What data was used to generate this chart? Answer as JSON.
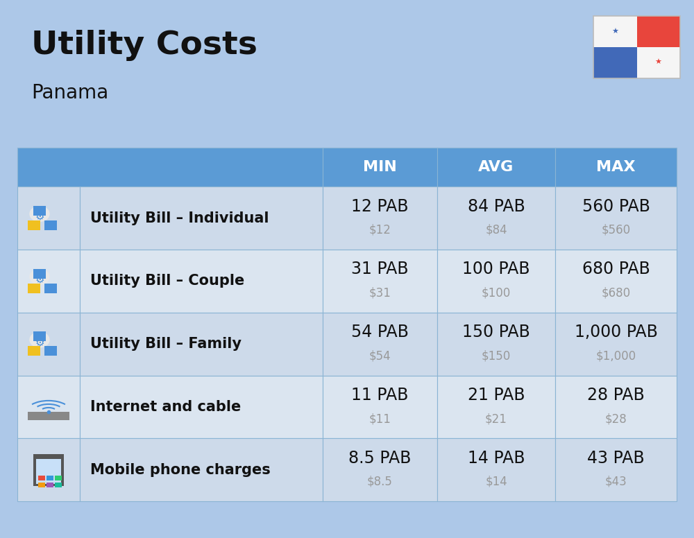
{
  "title": "Utility Costs",
  "subtitle": "Panama",
  "bg_color": "#adc8e8",
  "header_bg_color": "#5b9bd5",
  "header_text_color": "#ffffff",
  "row_bg_color_odd": "#cddaea",
  "row_bg_color_even": "#dbe5f0",
  "cell_border_color": "#8ab4d4",
  "header_labels": [
    "MIN",
    "AVG",
    "MAX"
  ],
  "rows": [
    {
      "label": "Utility Bill – Individual",
      "min_pab": "12 PAB",
      "min_usd": "$12",
      "avg_pab": "84 PAB",
      "avg_usd": "$84",
      "max_pab": "560 PAB",
      "max_usd": "$560"
    },
    {
      "label": "Utility Bill – Couple",
      "min_pab": "31 PAB",
      "min_usd": "$31",
      "avg_pab": "100 PAB",
      "avg_usd": "$100",
      "max_pab": "680 PAB",
      "max_usd": "$680"
    },
    {
      "label": "Utility Bill – Family",
      "min_pab": "54 PAB",
      "min_usd": "$54",
      "avg_pab": "150 PAB",
      "avg_usd": "$150",
      "max_pab": "1,000 PAB",
      "max_usd": "$1,000"
    },
    {
      "label": "Internet and cable",
      "min_pab": "11 PAB",
      "min_usd": "$11",
      "avg_pab": "21 PAB",
      "avg_usd": "$21",
      "max_pab": "28 PAB",
      "max_usd": "$28"
    },
    {
      "label": "Mobile phone charges",
      "min_pab": "8.5 PAB",
      "min_usd": "$8.5",
      "avg_pab": "14 PAB",
      "avg_usd": "$14",
      "max_pab": "43 PAB",
      "max_usd": "$43"
    }
  ],
  "title_fontsize": 34,
  "subtitle_fontsize": 20,
  "header_fontsize": 16,
  "label_fontsize": 15,
  "value_fontsize": 17,
  "usd_fontsize": 12,
  "usd_color": "#999999",
  "text_dark_color": "#111111",
  "flag_colors": {
    "white": "#f5f5f5",
    "red": "#e8453c",
    "blue": "#4169b8"
  }
}
